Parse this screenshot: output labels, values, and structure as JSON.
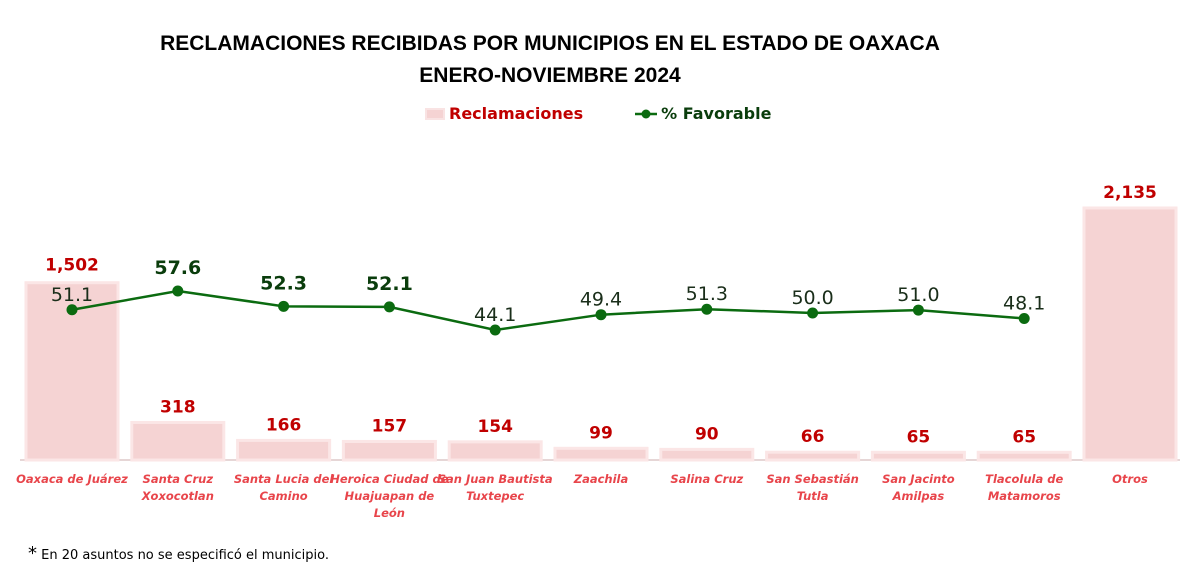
{
  "chart_data": {
    "type": "bar+line",
    "title": "RECLAMACIONES RECIBIDAS POR MUNICIPIOS EN EL ESTADO DE OAXACA",
    "subtitle": "ENERO-NOVIEMBRE 2024",
    "legend_position": "top",
    "categories": [
      "Oaxaca de Juárez",
      "Santa Cruz Xoxocotlan",
      "Santa Lucia del Camino",
      "Heroica Ciudad de Huajuapan de León",
      "San Juan Bautista Tuxtepec",
      "Zaachila",
      "Salina Cruz",
      "San Sebastián Tutla",
      "San Jacinto Amilpas",
      "Tlacolula de Matamoros",
      "Otros"
    ],
    "category_lines": [
      [
        "Oaxaca de Juárez"
      ],
      [
        "Santa Cruz",
        "Xoxocotlan"
      ],
      [
        "Santa Lucia del",
        "Camino"
      ],
      [
        "Heroica Ciudad de",
        "Huajuapan de",
        "León"
      ],
      [
        "San Juan Bautista",
        "Tuxtepec"
      ],
      [
        "Zaachila"
      ],
      [
        "Salina Cruz"
      ],
      [
        "San Sebastián",
        "Tutla"
      ],
      [
        "San Jacinto",
        "Amilpas"
      ],
      [
        "Tlacolula de",
        "Matamoros"
      ],
      [
        "Otros"
      ]
    ],
    "series": [
      {
        "name": "Reclamaciones",
        "type": "bar",
        "color": "#f5d3d3",
        "label_color": "#c00000",
        "values": [
          1502,
          318,
          166,
          157,
          154,
          99,
          90,
          66,
          65,
          65,
          2135
        ],
        "labels": [
          "1,502",
          "318",
          "166",
          "157",
          "154",
          "99",
          "90",
          "66",
          "65",
          "65",
          "2,135"
        ]
      },
      {
        "name": "% Favorable",
        "type": "line",
        "color": "#0b6b10",
        "values": [
          51.1,
          57.6,
          52.3,
          52.1,
          44.1,
          49.4,
          51.3,
          50.0,
          51.0,
          48.1,
          null
        ],
        "labels": [
          "51.1",
          "57.6",
          "52.3",
          "52.1",
          "44.1",
          "49.4",
          "51.3",
          "50.0",
          "51.0",
          "48.1",
          ""
        ],
        "highlighted": [
          false,
          true,
          true,
          true,
          false,
          false,
          false,
          false,
          false,
          false,
          false
        ]
      }
    ],
    "legend": [
      "Reclamaciones",
      "% Favorable"
    ],
    "grid": false
  },
  "footnote": {
    "mark": "*",
    "text": " En 20 asuntos no se especificó el municipio."
  }
}
